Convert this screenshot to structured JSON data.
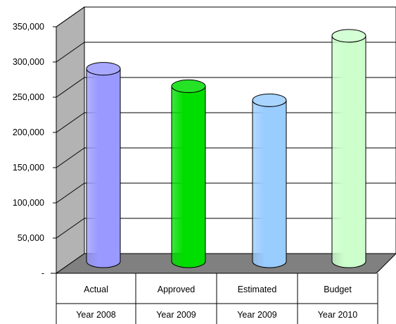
{
  "chart_data": {
    "type": "bar",
    "style": "3d-cylinder",
    "categories": [
      {
        "line1": "Actual",
        "line2": "Year 2008"
      },
      {
        "line1": "Approved",
        "line2": "Year 2009"
      },
      {
        "line1": "Estimated",
        "line2": "Year 2009"
      },
      {
        "line1": "Budget",
        "line2": "Year 2010"
      }
    ],
    "values": [
      275000,
      250000,
      230000,
      322000
    ],
    "bar_colors": [
      "#9999ff",
      "#00dd00",
      "#99ccff",
      "#ccffcc"
    ],
    "ylim": [
      0,
      350000
    ],
    "y_ticks": [
      {
        "value": 0,
        "label": "-"
      },
      {
        "value": 50000,
        "label": "50,000"
      },
      {
        "value": 100000,
        "label": "100,000"
      },
      {
        "value": 150000,
        "label": "150,000"
      },
      {
        "value": 200000,
        "label": "200,000"
      },
      {
        "value": 250000,
        "label": "250,000"
      },
      {
        "value": 300000,
        "label": "300,000"
      },
      {
        "value": 350000,
        "label": "350,000"
      }
    ],
    "grid": true,
    "wall_color": "#c0c0c0",
    "floor_color": "#808080",
    "title": "",
    "xlabel": "",
    "ylabel": ""
  }
}
